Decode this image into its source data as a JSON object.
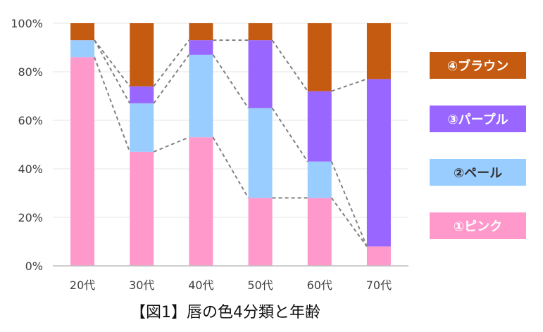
{
  "chart_data": {
    "type": "bar",
    "stacked": true,
    "title": "【図1】唇の色4分類と年齢",
    "xlabel": "",
    "ylabel": "",
    "ylim": [
      0,
      100
    ],
    "y_ticks": [
      "0%",
      "20%",
      "40%",
      "60%",
      "80%",
      "100%"
    ],
    "y_tick_values": [
      0,
      20,
      40,
      60,
      80,
      100
    ],
    "grid": true,
    "legend_position": "right",
    "categories": [
      "20代",
      "30代",
      "40代",
      "50代",
      "60代",
      "70代"
    ],
    "series": [
      {
        "name": "①ピンク",
        "color": "#FF99CC",
        "text_color": "#ffffff",
        "values": [
          86,
          47,
          53,
          28,
          28,
          8
        ]
      },
      {
        "name": "②ペール",
        "color": "#99CCFF",
        "text_color": "#333333",
        "values": [
          7,
          20,
          34,
          37,
          15,
          0
        ]
      },
      {
        "name": "③パープル",
        "color": "#9966FF",
        "text_color": "#ffffff",
        "values": [
          0,
          7,
          6,
          28,
          29,
          69
        ]
      },
      {
        "name": "④ブラウン",
        "color": "#C55A11",
        "text_color": "#ffffff",
        "values": [
          7,
          26,
          7,
          7,
          28,
          23
        ]
      }
    ],
    "connector_lines": "dashed"
  }
}
